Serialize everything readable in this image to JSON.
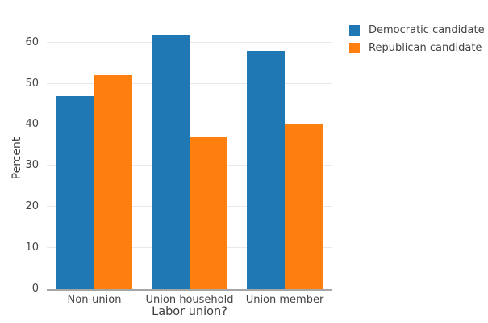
{
  "chart_data": {
    "type": "bar",
    "title": "",
    "categories": [
      "Non-union",
      "Union household",
      "Union member"
    ],
    "series": [
      {
        "name": "Democratic candidate",
        "color": "#1f77b4",
        "values": [
          47,
          62,
          58
        ]
      },
      {
        "name": "Republican candidate",
        "color": "#ff7f0e",
        "values": [
          52,
          37,
          40
        ]
      }
    ],
    "xlabel": "Labor union?",
    "ylabel": "Percent",
    "ylim": [
      0,
      64
    ],
    "yticks": [
      0,
      10,
      20,
      30,
      40,
      50,
      60
    ],
    "grid": true,
    "legend_position": "top-right"
  },
  "style": {
    "gridline_color": "#e9e9e9",
    "axisline_color": "#a6a6a6",
    "tick_text_color": "#444444",
    "axis_title_color": "#3d3d3d",
    "background": "#ffffff"
  }
}
